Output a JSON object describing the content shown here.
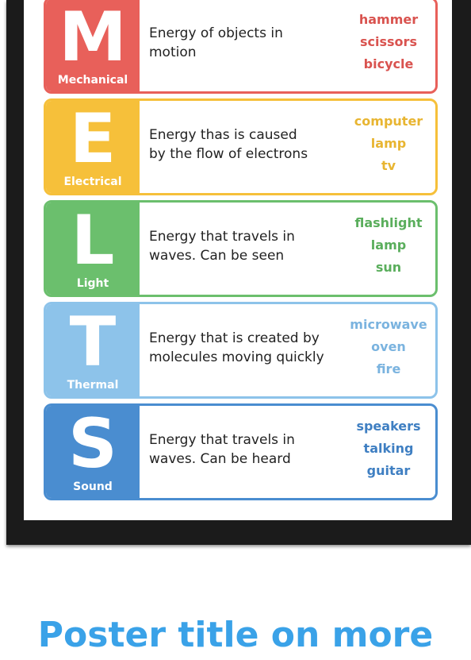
{
  "rows": [
    {
      "letter": "M",
      "category": "Mechanical",
      "description": [
        "Energy of objects in",
        "motion"
      ],
      "examples": [
        "hammer",
        "scissors",
        "bicycle"
      ],
      "color": "#e8605a",
      "text_color": "#d9534f"
    },
    {
      "letter": "E",
      "category": "Electrical",
      "description": [
        "Energy thas is caused",
        "by the flow of electrons"
      ],
      "examples": [
        "computer",
        "lamp",
        "tv"
      ],
      "color": "#f6c03a",
      "text_color": "#e8b531"
    },
    {
      "letter": "L",
      "category": "Light",
      "description": [
        "Energy that travels in",
        "waves. Can be seen"
      ],
      "examples": [
        "flashlight",
        "lamp",
        "sun"
      ],
      "color": "#6bbf6d",
      "text_color": "#5aae5c"
    },
    {
      "letter": "T",
      "category": "Thermal",
      "description": [
        "Energy that is created by",
        "molecules moving quickly"
      ],
      "examples": [
        "microwave",
        "oven",
        "fire"
      ],
      "color": "#8dc3ea",
      "text_color": "#7ab3df"
    },
    {
      "letter": "S",
      "category": "Sound",
      "description": [
        "Energy that travels in",
        "waves. Can be heard"
      ],
      "examples": [
        "speakers",
        "talking",
        "guitar"
      ],
      "color": "#4a8dd0",
      "text_color": "#3f7fc2"
    }
  ],
  "caption": "Poster title on more"
}
